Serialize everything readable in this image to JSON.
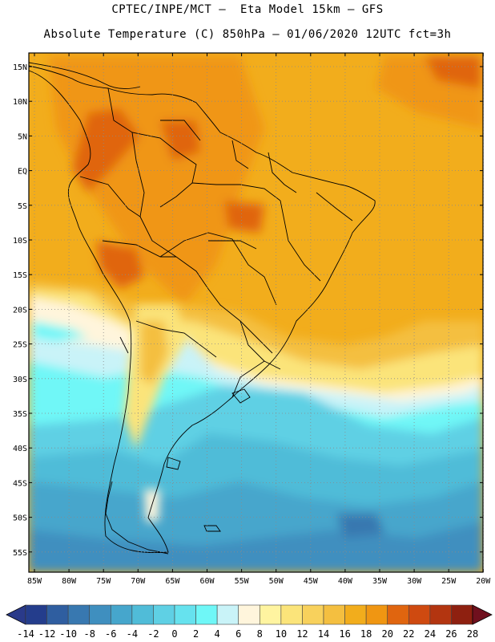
{
  "header": {
    "title_line1": "CPTEC/INPE/MCT –  Eta Model 15km – GFS",
    "title_line2": "Absolute Temperature (C) 850hPa – 01/06/2020 12UTC fct=3h"
  },
  "map": {
    "lat_labels": [
      "15N",
      "10N",
      "5N",
      "EQ",
      "5S",
      "10S",
      "15S",
      "20S",
      "25S",
      "30S",
      "35S",
      "40S",
      "45S",
      "50S",
      "55S"
    ],
    "lon_labels": [
      "85W",
      "80W",
      "75W",
      "70W",
      "65W",
      "60W",
      "55W",
      "50W",
      "45W",
      "40W",
      "35W",
      "30W",
      "25W",
      "20W"
    ],
    "lat_range": [
      15,
      -56
    ],
    "lon_range": [
      -85,
      -20
    ]
  },
  "colorbar": {
    "labels": [
      "-14",
      "-12",
      "-10",
      "-8",
      "-6",
      "-4",
      "-2",
      "0",
      "2",
      "4",
      "6",
      "8",
      "10",
      "12",
      "14",
      "16",
      "18",
      "20",
      "22",
      "24",
      "26",
      "28"
    ],
    "colors": [
      "#243d8c",
      "#2f5ea0",
      "#3878b0",
      "#3f8fbf",
      "#46a6cc",
      "#50bcd8",
      "#5fd0e4",
      "#66e2ee",
      "#6ff7f7",
      "#c9f3f8",
      "#fff5dc",
      "#fff4a0",
      "#fbe47a",
      "#f8d15c",
      "#f4bf40",
      "#f2ad1c",
      "#f09612",
      "#e0650f",
      "#cf4a10",
      "#b33510",
      "#8e2010"
    ],
    "underflow_color": "#2a3a8a",
    "overflow_color": "#70101e"
  }
}
